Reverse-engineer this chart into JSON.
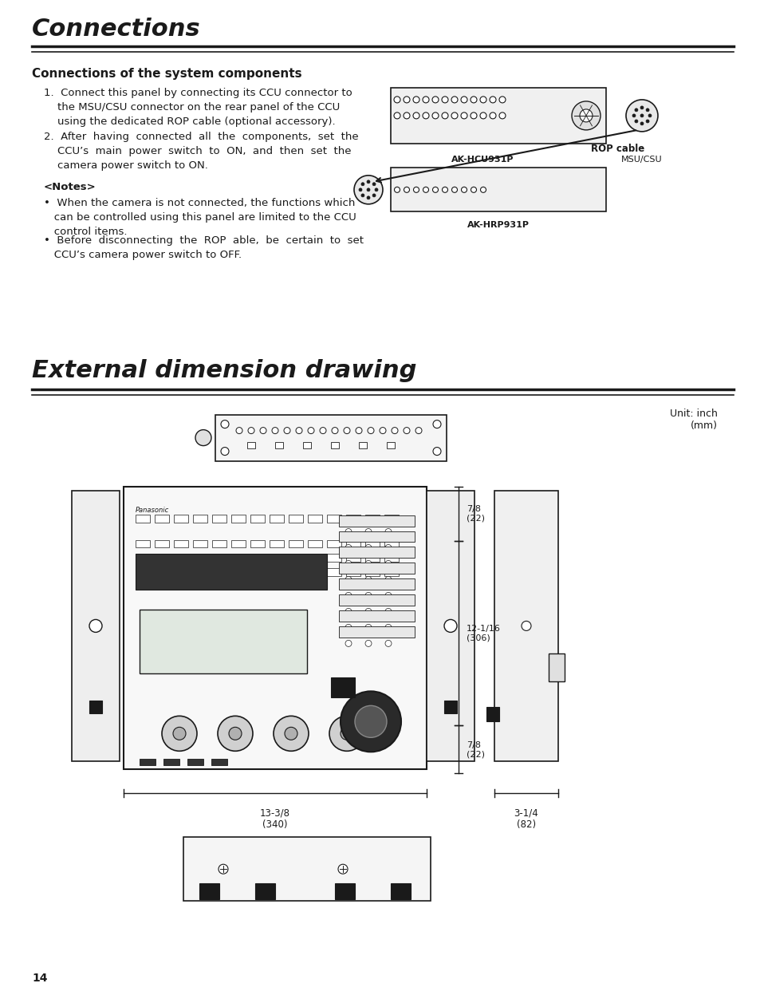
{
  "title": "Connections",
  "section1_title": "Connections of the system components",
  "step1": "1.  Connect this panel by connecting its CCU connector to\n    the MSU/CSU connector on the rear panel of the CCU\n    using the dedicated ROP cable (optional accessory).",
  "step2": "2.  After  having  connected  all  the  components,  set  the\n    CCU’s  main  power  switch  to  ON,  and  then  set  the\n    camera power switch to ON.",
  "notes_title": "<Notes>",
  "note1": "•  When the camera is not connected, the functions which\n   can be controlled using this panel are limited to the CCU\n   control items.",
  "note2": "•  Before  disconnecting  the  ROP  able,  be  certain  to  set\n   CCU’s camera power switch to OFF.",
  "section2_title": "External dimension drawing",
  "unit_label": "Unit: inch\n(mm)",
  "dim1": "7/8\n(22)",
  "dim2": "12-1/16\n(306)",
  "dim3": "7/8\n(22)",
  "dim4": "13-3/8\n(340)",
  "dim5": "3-1/4\n(82)",
  "label_akhcu": "AK-HCU931P",
  "label_msucsu": "MSU/CSU",
  "label_rop": "ROP cable",
  "label_akhrp": "AK-HRP931P",
  "page_number": "14",
  "bg_color": "#ffffff",
  "text_color": "#1a1a1a",
  "line_color": "#1a1a1a"
}
